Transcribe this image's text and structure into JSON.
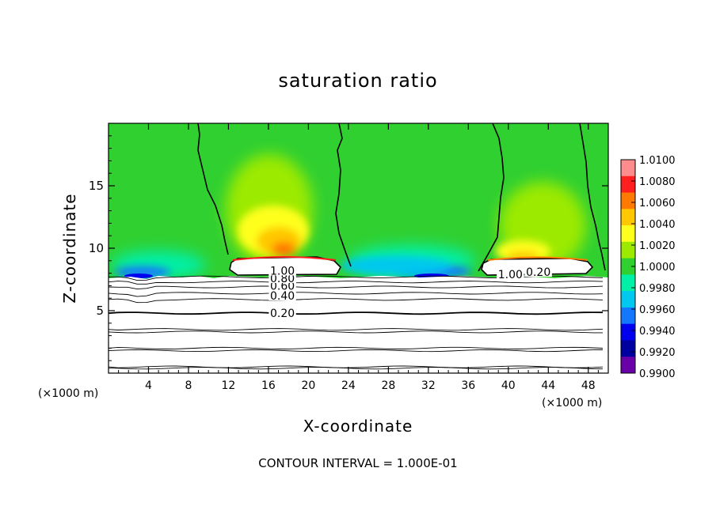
{
  "chart_data": {
    "type": "heatmap",
    "title": "saturation ratio",
    "xlabel": "X-coordinate",
    "ylabel": "Z-coordinate",
    "x_unit_left": "(×1000 m)",
    "x_unit_right": "(×1000 m)",
    "xlim": [
      0,
      50
    ],
    "ylim": [
      0,
      20
    ],
    "x_ticks": [
      4,
      8,
      12,
      16,
      20,
      24,
      28,
      32,
      36,
      40,
      44,
      48
    ],
    "x_tick_labels": [
      "4",
      "8",
      "12",
      "16",
      "20",
      "24",
      "28",
      "32",
      "36",
      "40",
      "44",
      "48"
    ],
    "y_ticks": [
      5,
      10,
      15
    ],
    "y_tick_labels": [
      "5",
      "10",
      "15"
    ],
    "colorbar": {
      "min": 0.99,
      "max": 1.01,
      "ticks": [
        1.01,
        1.008,
        1.006,
        1.004,
        1.002,
        1.0,
        0.998,
        0.996,
        0.994,
        0.992,
        0.99
      ],
      "tick_labels": [
        "1.0100",
        "1.0080",
        "1.0060",
        "1.0040",
        "1.0020",
        "1.0000",
        "0.9980",
        "0.9960",
        "0.9940",
        "0.9920",
        "0.9900"
      ],
      "colors": [
        "#ff8c8c",
        "#ff1f1f",
        "#ff7a00",
        "#ffc800",
        "#ffff1e",
        "#9cea00",
        "#30d030",
        "#00f0a8",
        "#00c8ee",
        "#1478ff",
        "#0000ee",
        "#0000a0",
        "#6a00a8"
      ]
    },
    "contour_lines": {
      "z_levels": [
        0.4,
        0.5,
        1.8,
        2.0,
        3.3,
        3.5,
        4.8,
        5.9,
        6.4,
        6.9,
        7.3,
        7.7
      ],
      "labels": [
        {
          "text": "0.20",
          "x": 17.4,
          "z": 4.8
        },
        {
          "text": "0.40",
          "x": 17.4,
          "z": 6.2
        },
        {
          "text": "0.60",
          "x": 17.4,
          "z": 7.0
        },
        {
          "text": "0.80",
          "x": 17.4,
          "z": 7.6
        },
        {
          "text": "1.00",
          "x": 17.4,
          "z": 8.2
        },
        {
          "text": "1.00",
          "x": 40.2,
          "z": 7.9
        },
        {
          "text": "0.20",
          "x": 43.0,
          "z": 8.1
        }
      ]
    },
    "saturation_maxima": [
      {
        "x": 17.5,
        "z": 10.3,
        "value": 1.008
      },
      {
        "x": 42.0,
        "z": 9.8,
        "value": 1.006
      }
    ],
    "subsaturation_minima": [
      {
        "x": 3.0,
        "z": 8.0,
        "value": 0.992
      },
      {
        "x": 32.0,
        "z": 8.0,
        "value": 0.993
      }
    ],
    "background_value": 1.0
  },
  "contour_interval_text": "CONTOUR INTERVAL = 1.000E-01",
  "colors": {
    "background": "#ffffff",
    "field_neutral": "#30d030",
    "contour": "#000000"
  }
}
